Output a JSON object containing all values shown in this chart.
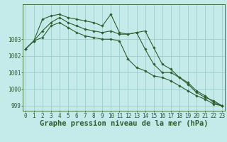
{
  "title": "Graphe pression niveau de la mer (hPa)",
  "background_color": "#c5eaea",
  "grid_color": "#9ecece",
  "line_color": "#2d5e2d",
  "hours": [
    0,
    1,
    2,
    3,
    4,
    5,
    6,
    7,
    8,
    9,
    10,
    11,
    12,
    13,
    14,
    15,
    16,
    17,
    18,
    19,
    20,
    21,
    22,
    23
  ],
  "series1": [
    1002.4,
    1002.9,
    1004.2,
    1004.4,
    1004.5,
    1004.3,
    1004.2,
    1004.1,
    1004.0,
    1003.8,
    1004.5,
    1003.4,
    1003.3,
    1003.4,
    1002.4,
    1001.5,
    1001.0,
    1001.0,
    1000.7,
    1000.4,
    999.9,
    999.6,
    999.2,
    999.0
  ],
  "series2": [
    1002.4,
    1002.9,
    1003.5,
    1004.0,
    1004.3,
    1004.0,
    1003.8,
    1003.6,
    1003.5,
    1003.4,
    1003.5,
    1003.3,
    1003.3,
    1003.4,
    1003.5,
    1002.5,
    1001.5,
    1001.2,
    1000.7,
    1000.3,
    999.8,
    999.5,
    999.3,
    999.0
  ],
  "series3": [
    1002.4,
    1002.9,
    1003.1,
    1003.8,
    1004.0,
    1003.7,
    1003.4,
    1003.2,
    1003.1,
    1003.0,
    1003.0,
    1002.9,
    1001.8,
    1001.3,
    1001.1,
    1000.8,
    1000.7,
    1000.5,
    1000.2,
    999.9,
    999.6,
    999.4,
    999.1,
    999.0
  ],
  "ylim_min": 998.7,
  "ylim_max": 1005.1,
  "yticks": [
    999,
    1000,
    1001,
    1002,
    1003
  ],
  "tick_fontsize": 5.5,
  "title_fontsize": 7.5
}
